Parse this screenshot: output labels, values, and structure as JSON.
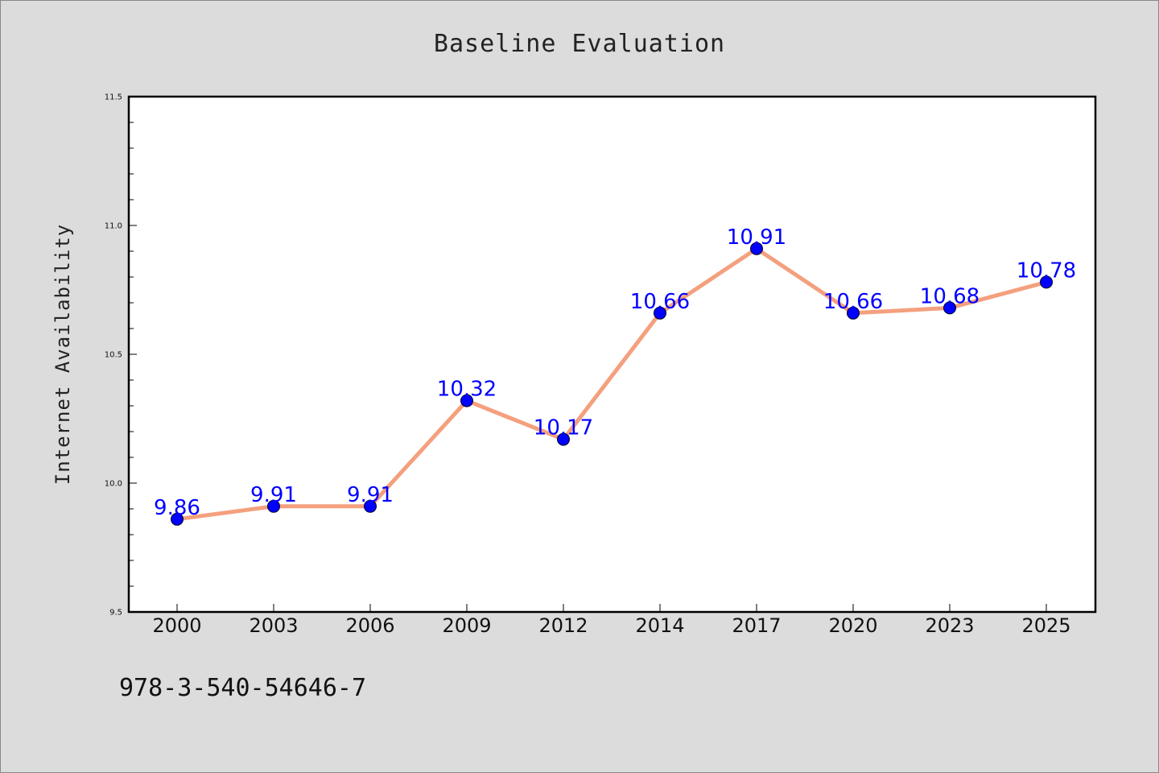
{
  "chart_data": {
    "type": "line",
    "title": "Baseline Evaluation",
    "xlabel": "",
    "ylabel": "Internet Availability",
    "categories": [
      "2000",
      "2003",
      "2006",
      "2009",
      "2012",
      "2014",
      "2017",
      "2020",
      "2023",
      "2025"
    ],
    "series": [
      {
        "values": [
          9.86,
          9.91,
          9.91,
          10.32,
          10.17,
          10.66,
          10.91,
          10.66,
          10.68,
          10.78
        ],
        "labels": [
          "9.86",
          "9.91",
          "9.91",
          "10.32",
          "10.17",
          "10.66",
          "10.91",
          "10.66",
          "10.68",
          "10.78"
        ],
        "line_color": "#f4a07e",
        "marker_color": "#0000ff"
      }
    ],
    "ylim": [
      9.5,
      11.5
    ],
    "yticks": [
      "9.5",
      "10.0",
      "10.5",
      "11.0",
      "11.5"
    ],
    "grid": false,
    "legend": "none"
  },
  "footnote": "978-3-540-54646-7",
  "colors": {
    "background": "#dcdcdc",
    "plot_area": "#ffffff",
    "line": "#f4a07e",
    "marker": "#0000ff",
    "data_label": "#0000ff"
  }
}
